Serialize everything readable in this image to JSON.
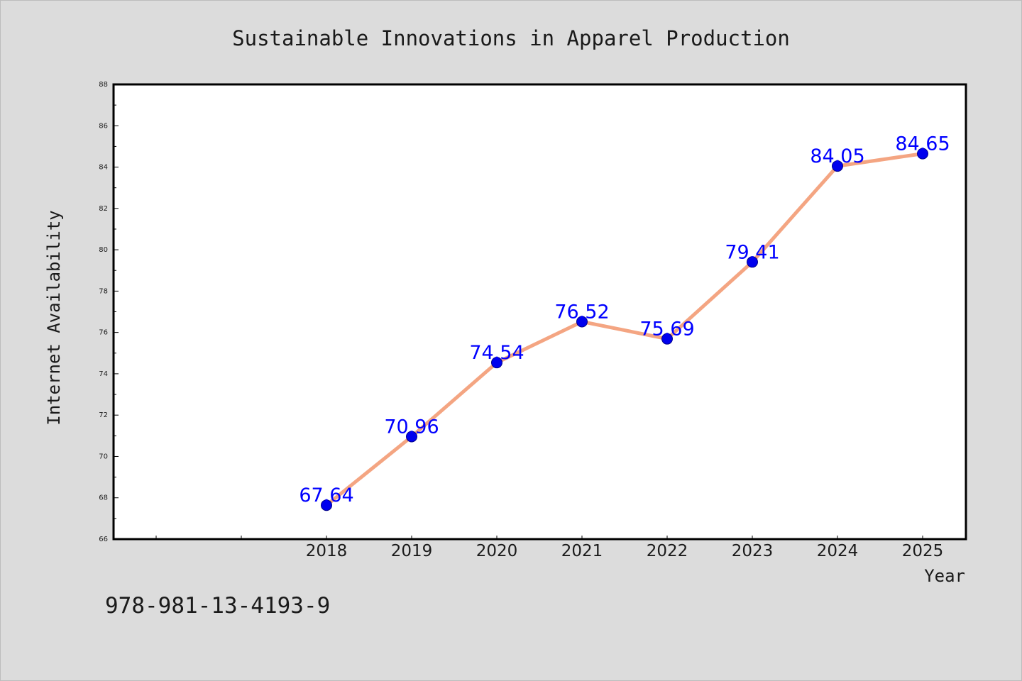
{
  "chart_data": {
    "type": "line",
    "title": "Sustainable Innovations in Apparel Production",
    "xlabel": "Year",
    "ylabel": "Internet Availability",
    "x": [
      "2018",
      "2019",
      "2020",
      "2021",
      "2022",
      "2023",
      "2024",
      "2025"
    ],
    "series": [
      {
        "values": [
          67.64,
          70.96,
          74.54,
          76.52,
          75.69,
          79.41,
          84.05,
          84.65
        ],
        "data_labels": [
          "67.64",
          "70.96",
          "74.54",
          "76.52",
          "75.69",
          "79.41",
          "84.05",
          "84.65"
        ],
        "line_color": "#f4a582",
        "marker_color": "#0000ee"
      }
    ],
    "ylim": [
      66,
      88
    ],
    "yticks": [
      "66",
      "68",
      "70",
      "72",
      "74",
      "76",
      "78",
      "80",
      "82",
      "84",
      "86",
      "88"
    ],
    "grid": false,
    "legend": "none",
    "label_color": "#0000ff",
    "footer_text": "978-981-13-4193-9"
  }
}
